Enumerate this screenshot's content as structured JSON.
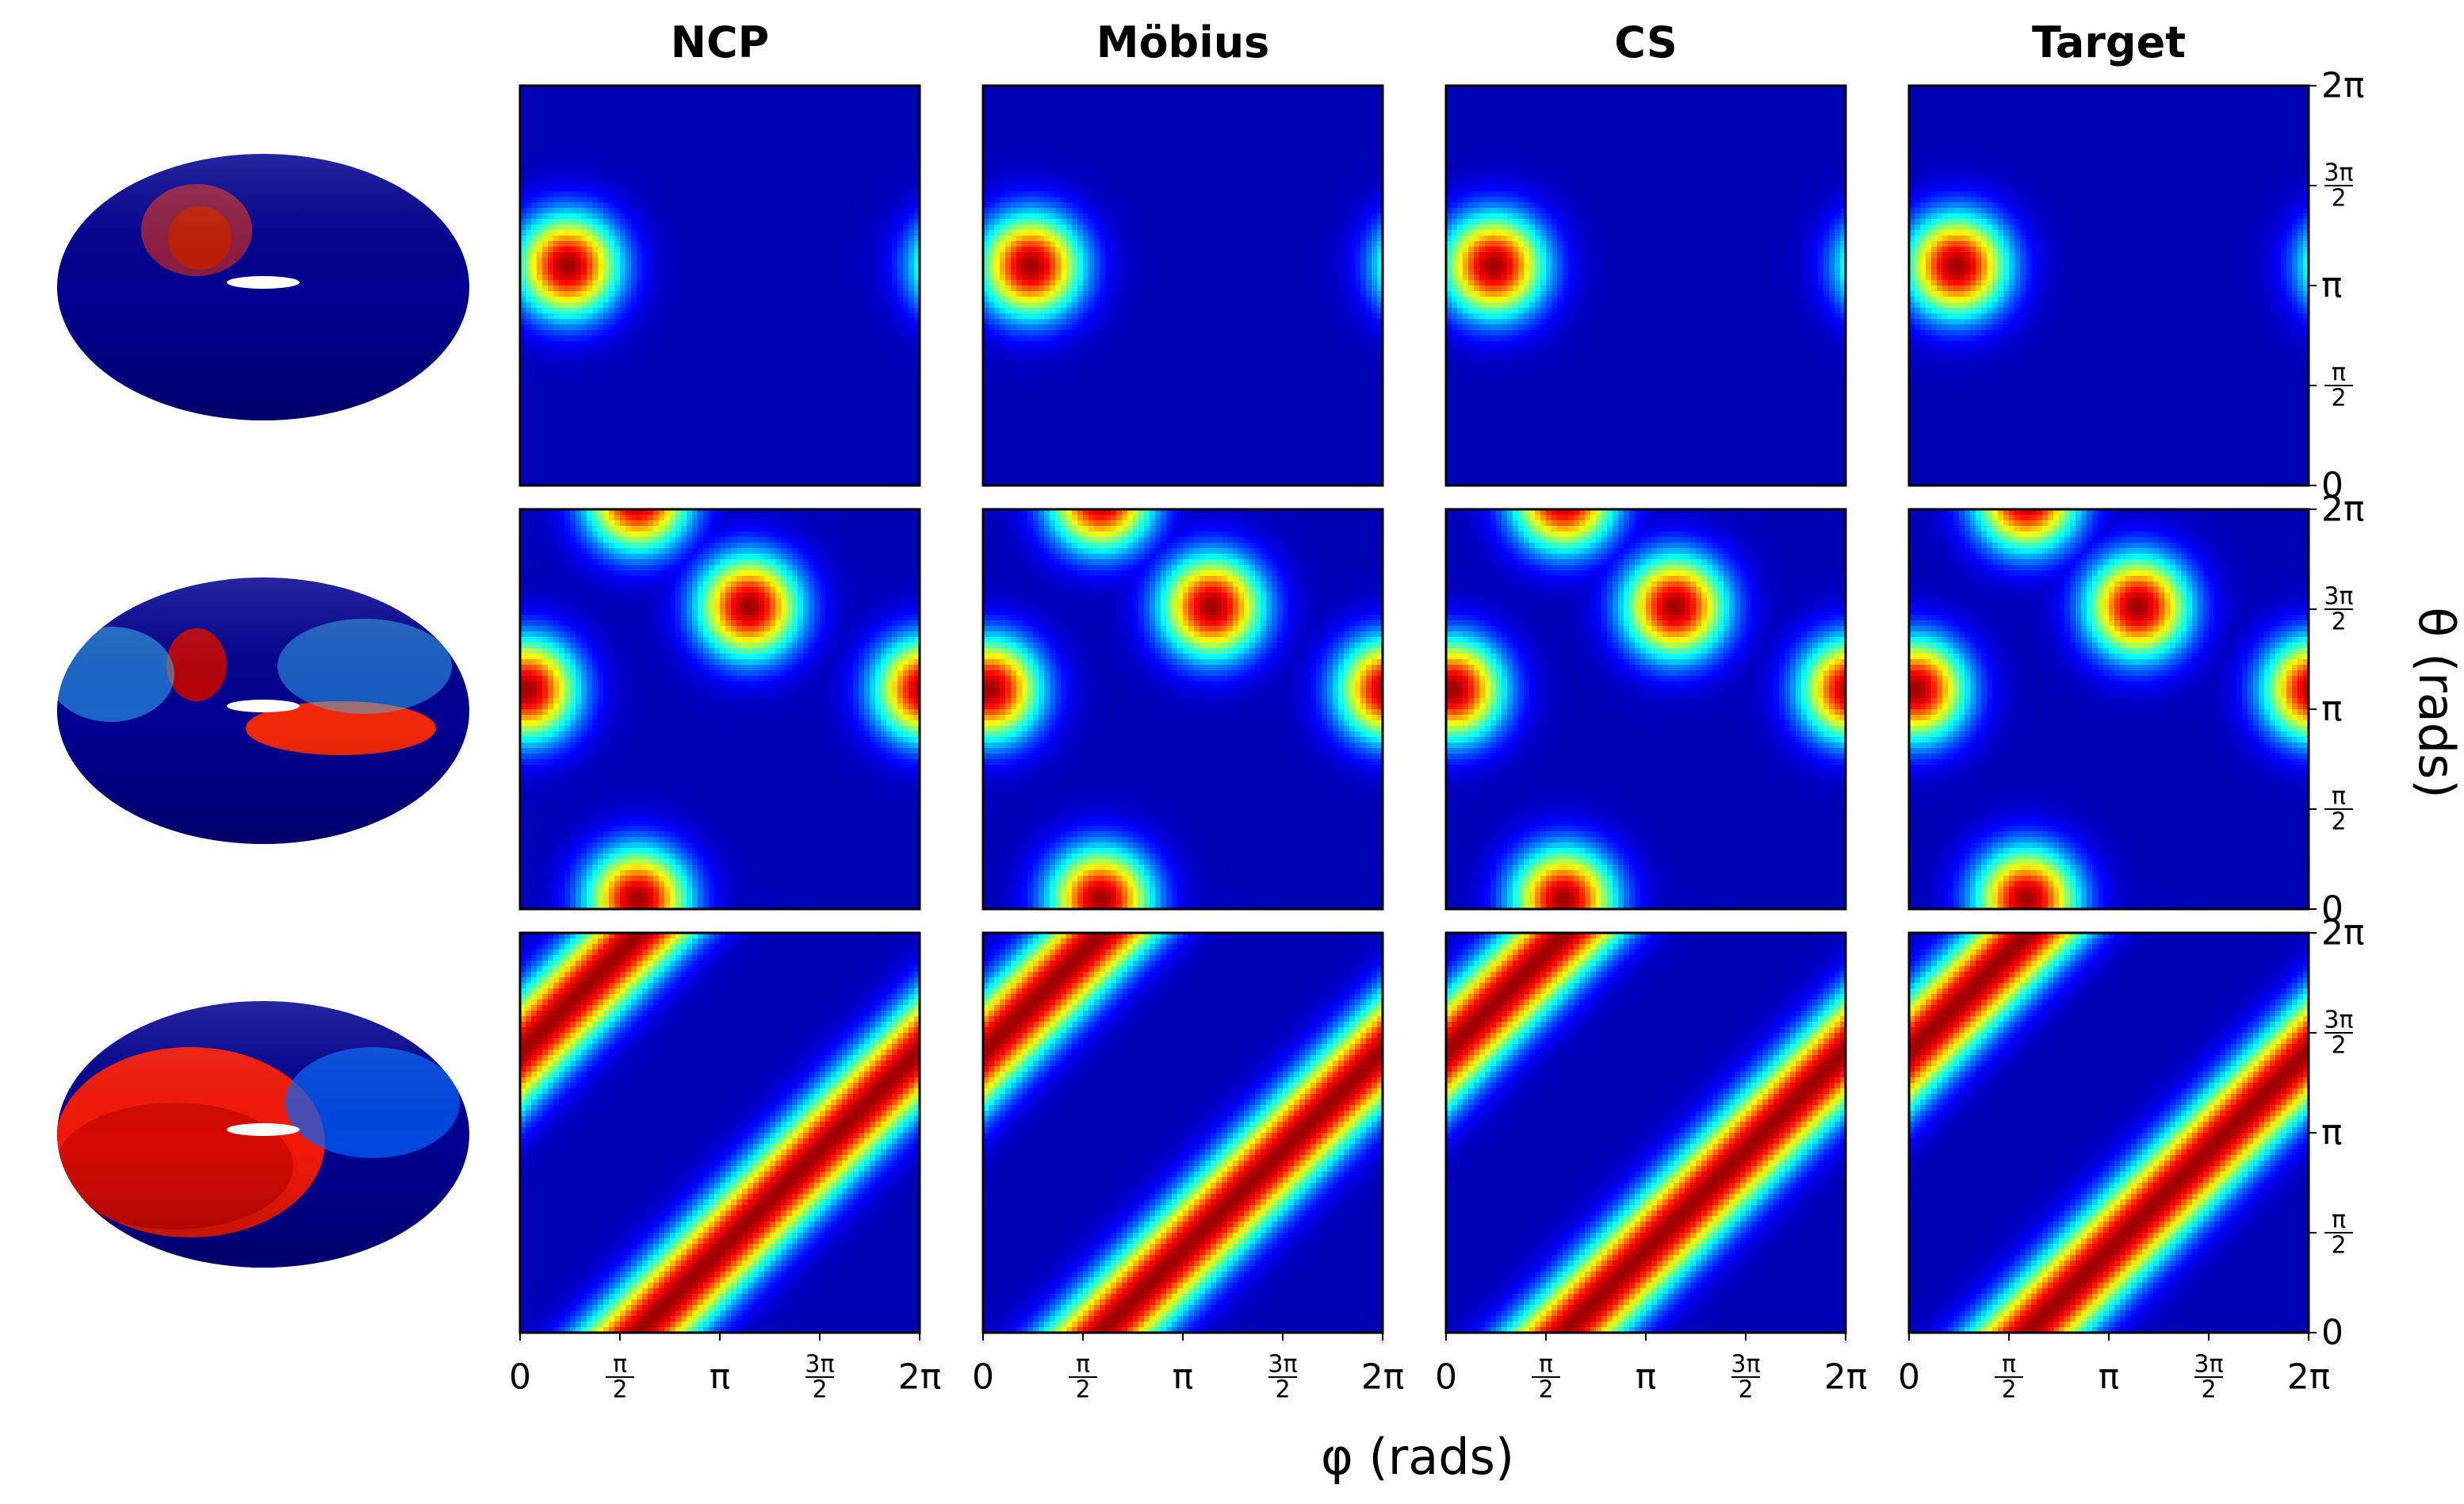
{
  "chart_data": {
    "type": "heatmap",
    "colormap": "jet",
    "columns": [
      "NCP",
      "Möbius",
      "CS",
      "Target"
    ],
    "xlabel": "φ (rads)",
    "ylabel": "θ (rads)",
    "xlim": [
      "0",
      "2π"
    ],
    "ylim": [
      "0",
      "2π"
    ],
    "xticks": [
      {
        "value": 0,
        "main": "0"
      },
      {
        "value": 1.5708,
        "num": "π",
        "den": "2"
      },
      {
        "value": 3.1416,
        "main": "π"
      },
      {
        "value": 4.7124,
        "num": "3π",
        "den": "2"
      },
      {
        "value": 6.2832,
        "main": "2π"
      }
    ],
    "yticks": [
      {
        "value": 0,
        "main": "0"
      },
      {
        "value": 1.5708,
        "num": "π",
        "den": "2"
      },
      {
        "value": 3.1416,
        "main": "π"
      },
      {
        "value": 4.7124,
        "num": "3π",
        "den": "2"
      },
      {
        "value": 6.2832,
        "main": "2π"
      }
    ],
    "rows": [
      {
        "description": "single peak",
        "bumps": [
          {
            "phi": 0.75,
            "theta": 3.45
          }
        ],
        "bump_width": 0.55
      },
      {
        "description": "three peaks on a diagonal lattice",
        "bumps": [
          {
            "phi": 0.1,
            "theta": 3.45
          },
          {
            "phi": 3.6,
            "theta": 4.75
          },
          {
            "phi": 1.85,
            "theta": 0.15
          }
        ],
        "bump_width": 0.55
      },
      {
        "description": "diagonal stripes",
        "stripe": {
          "offsets": [
            -1.85,
            4.4
          ],
          "width": 0.45,
          "slope": 1
        }
      }
    ]
  }
}
